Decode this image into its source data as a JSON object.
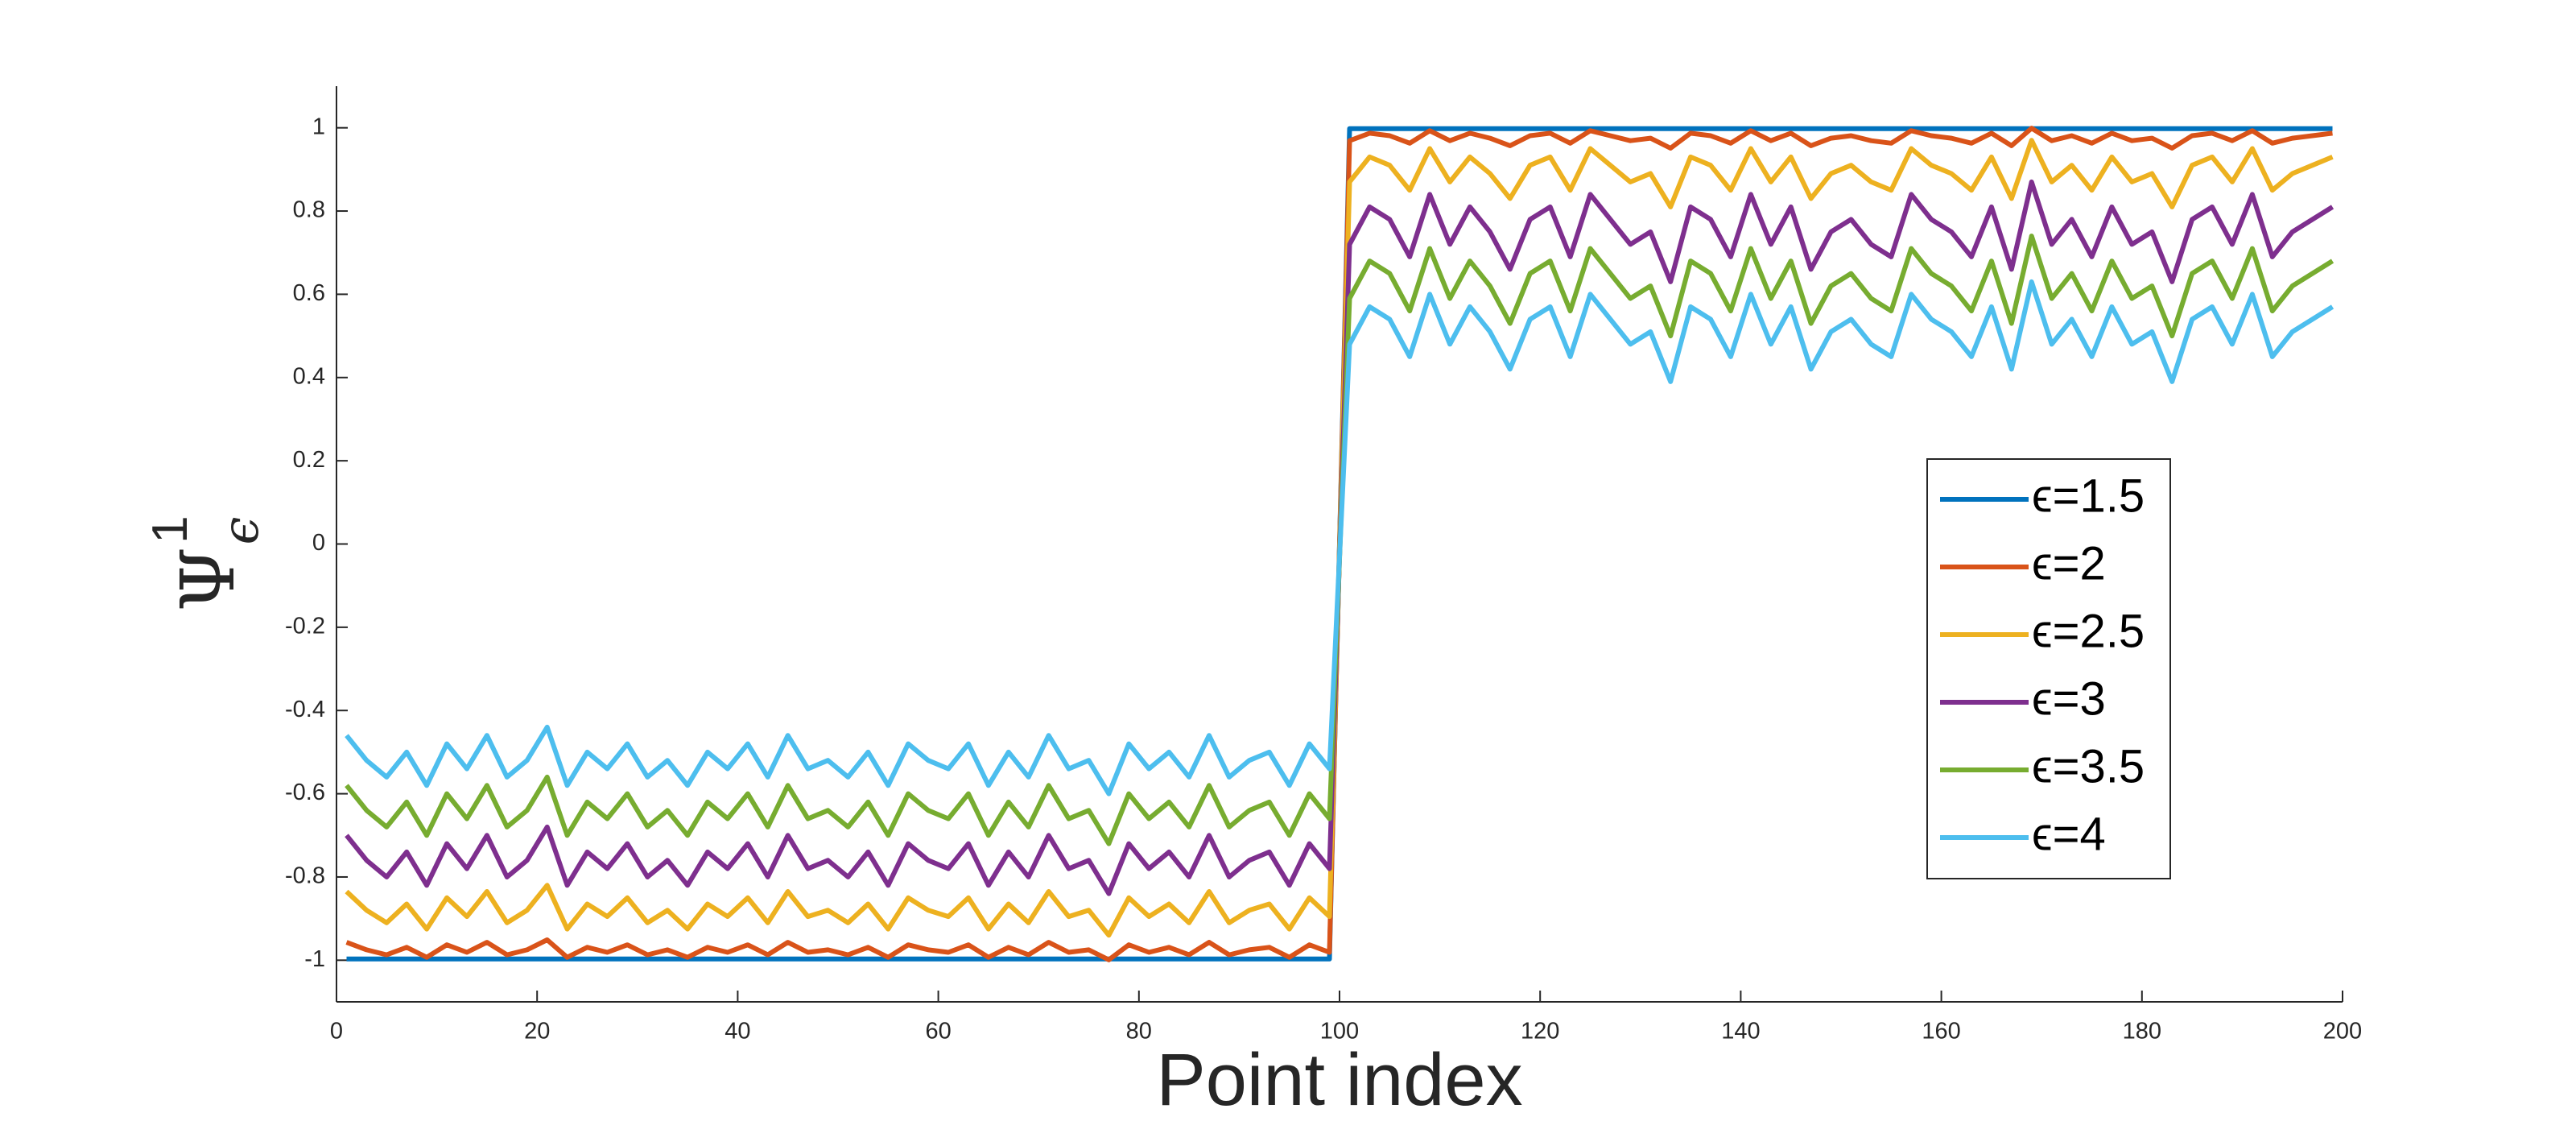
{
  "chart_data": {
    "type": "line",
    "ylabel": {
      "symbol": "Ψ",
      "superscript": "1",
      "subscript": "ϵ"
    },
    "xlabel": "Point index",
    "xlim": [
      0,
      200
    ],
    "xticks": [
      0,
      20,
      40,
      60,
      80,
      100,
      120,
      140,
      160,
      180,
      200
    ],
    "ylim": [
      -1.1,
      1.1
    ],
    "yticks": [
      -1,
      -0.8,
      -0.6,
      -0.4,
      -0.2,
      0,
      0.2,
      0.4,
      0.6,
      0.8,
      1
    ],
    "grid": false,
    "legend": "right",
    "x": [
      1,
      3,
      5,
      7,
      9,
      11,
      13,
      15,
      17,
      19,
      21,
      23,
      25,
      27,
      29,
      31,
      33,
      35,
      37,
      39,
      41,
      43,
      45,
      47,
      49,
      51,
      53,
      55,
      57,
      59,
      61,
      63,
      65,
      67,
      69,
      71,
      73,
      75,
      77,
      79,
      81,
      83,
      85,
      87,
      89,
      91,
      93,
      95,
      97,
      99,
      101,
      103,
      105,
      107,
      109,
      111,
      113,
      115,
      117,
      119,
      121,
      123,
      125,
      127,
      129,
      131,
      133,
      135,
      137,
      139,
      141,
      143,
      145,
      147,
      149,
      151,
      153,
      155,
      157,
      159,
      161,
      163,
      165,
      167,
      169,
      171,
      173,
      175,
      177,
      179,
      181,
      183,
      185,
      187,
      189,
      191,
      193,
      195,
      197,
      199
    ],
    "series": [
      {
        "name": "ϵ=1.5",
        "color": "#0072BD",
        "values": [
          -0.997,
          -0.997,
          -0.997,
          -0.997,
          -0.997,
          -0.997,
          -0.997,
          -0.997,
          -0.997,
          -0.997,
          -0.997,
          -0.997,
          -0.997,
          -0.997,
          -0.997,
          -0.997,
          -0.997,
          -0.997,
          -0.997,
          -0.997,
          -0.997,
          -0.997,
          -0.997,
          -0.997,
          -0.997,
          -0.997,
          -0.997,
          -0.997,
          -0.997,
          -0.997,
          -0.997,
          -0.997,
          -0.997,
          -0.997,
          -0.997,
          -0.997,
          -0.997,
          -0.997,
          -0.997,
          -0.997,
          -0.997,
          -0.997,
          -0.997,
          -0.997,
          -0.997,
          -0.997,
          -0.997,
          -0.997,
          -0.997,
          -0.997,
          0.998,
          0.998,
          0.998,
          0.998,
          0.998,
          0.998,
          0.998,
          0.998,
          0.998,
          0.998,
          0.998,
          0.998,
          0.998,
          0.998,
          0.998,
          0.998,
          0.998,
          0.998,
          0.998,
          0.998,
          0.998,
          0.998,
          0.998,
          0.998,
          0.998,
          0.998,
          0.998,
          0.998,
          0.998,
          0.998,
          0.998,
          0.998,
          0.998,
          0.998,
          0.998,
          0.998,
          0.998,
          0.998,
          0.998,
          0.998,
          0.998,
          0.998,
          0.998,
          0.998,
          0.998,
          0.998,
          0.998,
          0.998,
          0.998,
          0.998
        ]
      },
      {
        "name": "ϵ=2",
        "color": "#D95319",
        "values": [
          -0.957,
          -0.975,
          -0.987,
          -0.969,
          -0.993,
          -0.963,
          -0.981,
          -0.957,
          -0.987,
          -0.975,
          -0.951,
          -0.993,
          -0.969,
          -0.981,
          -0.963,
          -0.987,
          -0.975,
          -0.993,
          -0.969,
          -0.981,
          -0.963,
          -0.987,
          -0.957,
          -0.981,
          -0.975,
          -0.987,
          -0.969,
          -0.993,
          -0.963,
          -0.975,
          -0.981,
          -0.963,
          -0.993,
          -0.969,
          -0.987,
          -0.957,
          -0.981,
          -0.975,
          -0.999,
          -0.963,
          -0.981,
          -0.969,
          -0.987,
          -0.957,
          -0.987,
          -0.975,
          -0.969,
          -0.993,
          -0.963,
          -0.981,
          0.969,
          0.987,
          0.981,
          0.963,
          0.993,
          0.969,
          0.987,
          0.975,
          0.957,
          0.981,
          0.987,
          0.963,
          0.993,
          0.981,
          0.969,
          0.975,
          0.951,
          0.987,
          0.981,
          0.963,
          0.993,
          0.969,
          0.987,
          0.957,
          0.975,
          0.981,
          0.969,
          0.963,
          0.993,
          0.981,
          0.975,
          0.963,
          0.987,
          0.957,
          0.999,
          0.969,
          0.981,
          0.963,
          0.987,
          0.969,
          0.975,
          0.951,
          0.981,
          0.987,
          0.969,
          0.993,
          0.963,
          0.975,
          0.981,
          0.987
        ]
      },
      {
        "name": "ϵ=2.5",
        "color": "#EDB120",
        "values": [
          -0.835,
          -0.88,
          -0.91,
          -0.865,
          -0.925,
          -0.85,
          -0.895,
          -0.835,
          -0.91,
          -0.88,
          -0.82,
          -0.925,
          -0.865,
          -0.895,
          -0.85,
          -0.91,
          -0.88,
          -0.925,
          -0.865,
          -0.895,
          -0.85,
          -0.91,
          -0.835,
          -0.895,
          -0.88,
          -0.91,
          -0.865,
          -0.925,
          -0.85,
          -0.88,
          -0.895,
          -0.85,
          -0.925,
          -0.865,
          -0.91,
          -0.835,
          -0.895,
          -0.88,
          -0.94,
          -0.85,
          -0.895,
          -0.865,
          -0.91,
          -0.835,
          -0.91,
          -0.88,
          -0.865,
          -0.925,
          -0.85,
          -0.895,
          0.87,
          0.93,
          0.91,
          0.85,
          0.95,
          0.87,
          0.93,
          0.89,
          0.83,
          0.91,
          0.93,
          0.85,
          0.95,
          0.91,
          0.87,
          0.89,
          0.81,
          0.93,
          0.91,
          0.85,
          0.95,
          0.87,
          0.93,
          0.83,
          0.89,
          0.91,
          0.87,
          0.85,
          0.95,
          0.91,
          0.89,
          0.85,
          0.93,
          0.83,
          0.97,
          0.87,
          0.91,
          0.85,
          0.93,
          0.87,
          0.89,
          0.81,
          0.91,
          0.93,
          0.87,
          0.95,
          0.85,
          0.89,
          0.91,
          0.93
        ]
      },
      {
        "name": "ϵ=3",
        "color": "#7E2F8E",
        "values": [
          -0.7,
          -0.76,
          -0.8,
          -0.74,
          -0.82,
          -0.72,
          -0.78,
          -0.7,
          -0.8,
          -0.76,
          -0.68,
          -0.82,
          -0.74,
          -0.78,
          -0.72,
          -0.8,
          -0.76,
          -0.82,
          -0.74,
          -0.78,
          -0.72,
          -0.8,
          -0.7,
          -0.78,
          -0.76,
          -0.8,
          -0.74,
          -0.82,
          -0.72,
          -0.76,
          -0.78,
          -0.72,
          -0.82,
          -0.74,
          -0.8,
          -0.7,
          -0.78,
          -0.76,
          -0.84,
          -0.72,
          -0.78,
          -0.74,
          -0.8,
          -0.7,
          -0.8,
          -0.76,
          -0.74,
          -0.82,
          -0.72,
          -0.78,
          0.72,
          0.81,
          0.78,
          0.69,
          0.84,
          0.72,
          0.81,
          0.75,
          0.66,
          0.78,
          0.81,
          0.69,
          0.84,
          0.78,
          0.72,
          0.75,
          0.63,
          0.81,
          0.78,
          0.69,
          0.84,
          0.72,
          0.81,
          0.66,
          0.75,
          0.78,
          0.72,
          0.69,
          0.84,
          0.78,
          0.75,
          0.69,
          0.81,
          0.66,
          0.87,
          0.72,
          0.78,
          0.69,
          0.81,
          0.72,
          0.75,
          0.63,
          0.78,
          0.81,
          0.72,
          0.84,
          0.69,
          0.75,
          0.78,
          0.81
        ]
      },
      {
        "name": "ϵ=3.5",
        "color": "#77AC30",
        "values": [
          -0.58,
          -0.64,
          -0.68,
          -0.62,
          -0.7,
          -0.6,
          -0.66,
          -0.58,
          -0.68,
          -0.64,
          -0.56,
          -0.7,
          -0.62,
          -0.66,
          -0.6,
          -0.68,
          -0.64,
          -0.7,
          -0.62,
          -0.66,
          -0.6,
          -0.68,
          -0.58,
          -0.66,
          -0.64,
          -0.68,
          -0.62,
          -0.7,
          -0.6,
          -0.64,
          -0.66,
          -0.6,
          -0.7,
          -0.62,
          -0.68,
          -0.58,
          -0.66,
          -0.64,
          -0.72,
          -0.6,
          -0.66,
          -0.62,
          -0.68,
          -0.58,
          -0.68,
          -0.64,
          -0.62,
          -0.7,
          -0.6,
          -0.66,
          0.59,
          0.68,
          0.65,
          0.56,
          0.71,
          0.59,
          0.68,
          0.62,
          0.53,
          0.65,
          0.68,
          0.56,
          0.71,
          0.65,
          0.59,
          0.62,
          0.5,
          0.68,
          0.65,
          0.56,
          0.71,
          0.59,
          0.68,
          0.53,
          0.62,
          0.65,
          0.59,
          0.56,
          0.71,
          0.65,
          0.62,
          0.56,
          0.68,
          0.53,
          0.74,
          0.59,
          0.65,
          0.56,
          0.68,
          0.59,
          0.62,
          0.5,
          0.65,
          0.68,
          0.59,
          0.71,
          0.56,
          0.62,
          0.65,
          0.68
        ]
      },
      {
        "name": "ϵ=4",
        "color": "#4DBEEE",
        "values": [
          -0.46,
          -0.52,
          -0.56,
          -0.5,
          -0.58,
          -0.48,
          -0.54,
          -0.46,
          -0.56,
          -0.52,
          -0.44,
          -0.58,
          -0.5,
          -0.54,
          -0.48,
          -0.56,
          -0.52,
          -0.58,
          -0.5,
          -0.54,
          -0.48,
          -0.56,
          -0.46,
          -0.54,
          -0.52,
          -0.56,
          -0.5,
          -0.58,
          -0.48,
          -0.52,
          -0.54,
          -0.48,
          -0.58,
          -0.5,
          -0.56,
          -0.46,
          -0.54,
          -0.52,
          -0.6,
          -0.48,
          -0.54,
          -0.5,
          -0.56,
          -0.46,
          -0.56,
          -0.52,
          -0.5,
          -0.58,
          -0.48,
          -0.54,
          0.48,
          0.57,
          0.54,
          0.45,
          0.6,
          0.48,
          0.57,
          0.51,
          0.42,
          0.54,
          0.57,
          0.45,
          0.6,
          0.54,
          0.48,
          0.51,
          0.39,
          0.57,
          0.54,
          0.45,
          0.6,
          0.48,
          0.57,
          0.42,
          0.51,
          0.54,
          0.48,
          0.45,
          0.6,
          0.54,
          0.51,
          0.45,
          0.57,
          0.42,
          0.63,
          0.48,
          0.54,
          0.45,
          0.57,
          0.48,
          0.51,
          0.39,
          0.54,
          0.57,
          0.48,
          0.6,
          0.45,
          0.51,
          0.54,
          0.57
        ]
      }
    ]
  }
}
